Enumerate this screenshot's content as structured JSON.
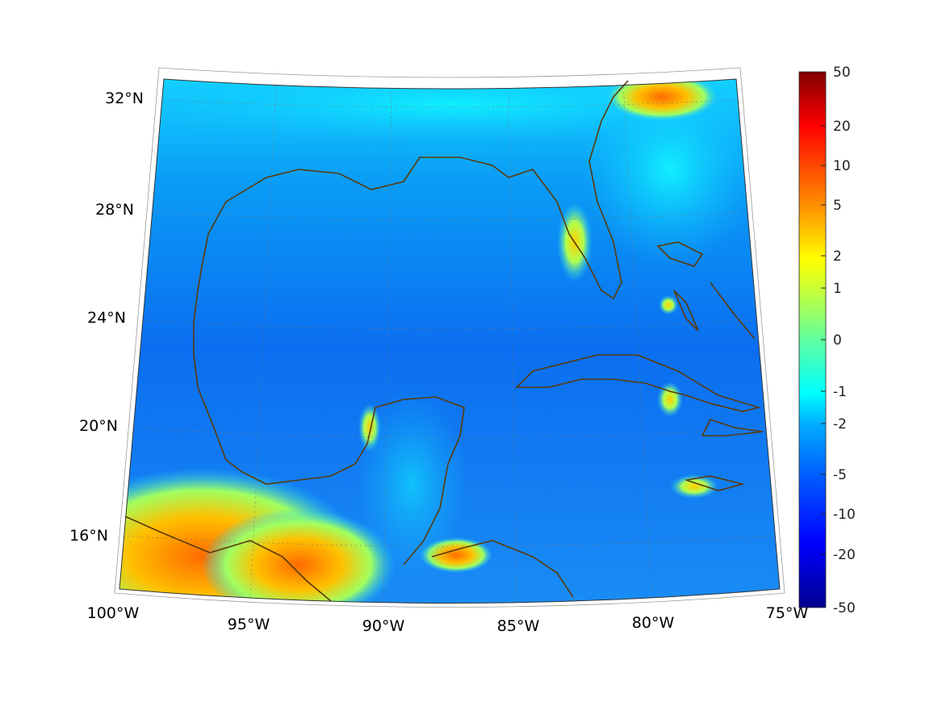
{
  "map": {
    "lat_labels": [
      "32°N",
      "28°N",
      "24°N",
      "20°N",
      "16°N"
    ],
    "lon_labels": [
      "100°W",
      "95°W",
      "90°W",
      "85°W",
      "80°W",
      "75°W"
    ],
    "coast_color": "#5a3a0a"
  },
  "colorbar": {
    "tick_labels": [
      "50",
      "20",
      "10",
      "5",
      "2",
      "1",
      "0",
      "-1",
      "-2",
      "-5",
      "-10",
      "-20",
      "-50"
    ],
    "colormap": "jet"
  }
}
